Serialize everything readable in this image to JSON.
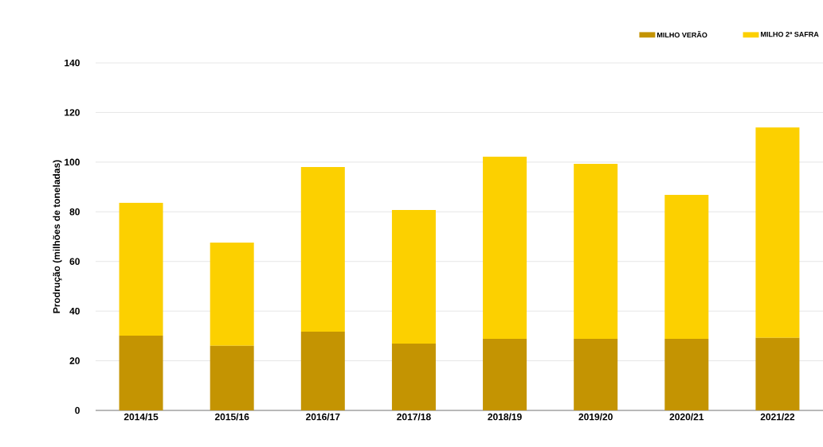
{
  "chart_data": {
    "type": "bar",
    "stacked": true,
    "ylabel": "Prodrução (milhões de toneladas)",
    "categories": [
      "2014/15",
      "2015/16",
      "2016/17",
      "2017/18",
      "2018/19",
      "2019/20",
      "2020/21",
      "2021/22"
    ],
    "series": [
      {
        "name": "MILHO VERÃO",
        "color": "#c49402",
        "values": [
          30.1,
          26.0,
          31.7,
          26.9,
          28.8,
          28.8,
          28.8,
          29.2
        ]
      },
      {
        "name": "MILHO 2ª SAFRA",
        "color": "#fcd000",
        "values": [
          53.5,
          41.6,
          66.3,
          53.8,
          73.4,
          70.5,
          58.0,
          84.8
        ]
      }
    ],
    "ylim": [
      0,
      140
    ],
    "yticks": [
      0,
      20,
      40,
      60,
      80,
      100,
      120,
      140
    ],
    "grid": "y",
    "legend": "top right"
  }
}
